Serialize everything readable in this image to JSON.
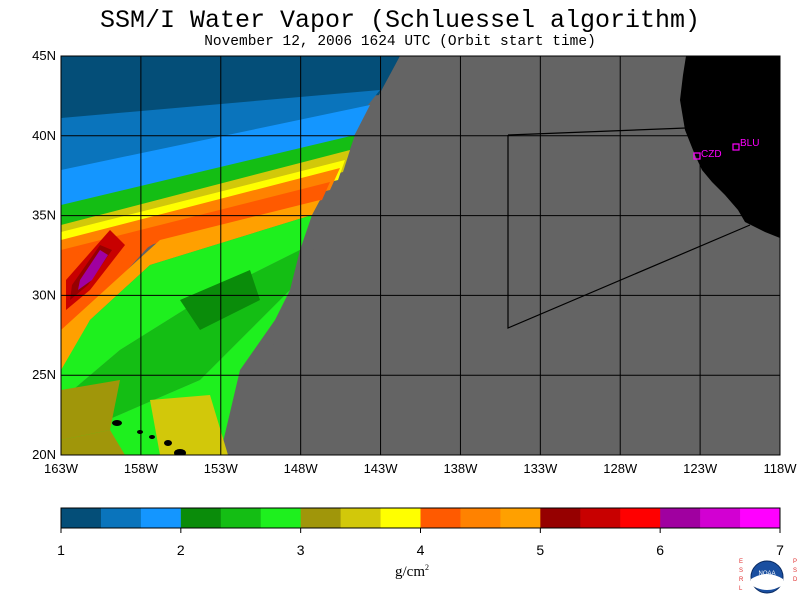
{
  "title": "SSM/I Water Vapor (Schluessel algorithm)",
  "subtitle": "November 12, 2006  1624 UTC  (Orbit start time)",
  "map": {
    "lat_labels": [
      "45N",
      "40N",
      "35N",
      "30N",
      "25N",
      "20N"
    ],
    "lon_labels": [
      "163W",
      "158W",
      "153W",
      "148W",
      "143W",
      "138W",
      "133W",
      "128W",
      "123W",
      "118W"
    ],
    "stations": [
      {
        "id": "CZD",
        "lon": -123.3,
        "lat": 38.6
      },
      {
        "id": "BLU",
        "lon": -120.9,
        "lat": 39.3
      }
    ],
    "colors": {
      "no_data": "#646464",
      "land": "#000000",
      "station": "#ff00ff"
    }
  },
  "colorbar": {
    "colors": [
      "#044e78",
      "#0a74bc",
      "#1496ff",
      "#0a8c0a",
      "#14be14",
      "#1ef01e",
      "#a0960a",
      "#d2c80a",
      "#ffff00",
      "#ff5a00",
      "#ff8200",
      "#ffa000",
      "#960000",
      "#c80000",
      "#ff0000",
      "#a000a0",
      "#d200d2",
      "#ff00ff"
    ],
    "tick_labels": [
      "1",
      "2",
      "3",
      "4",
      "5",
      "6",
      "7"
    ],
    "unit": "g/cm",
    "unit_exp": "2"
  },
  "logo": {
    "left_text": "ESRL",
    "right_text": "PSD",
    "center_text": "NOAA"
  }
}
